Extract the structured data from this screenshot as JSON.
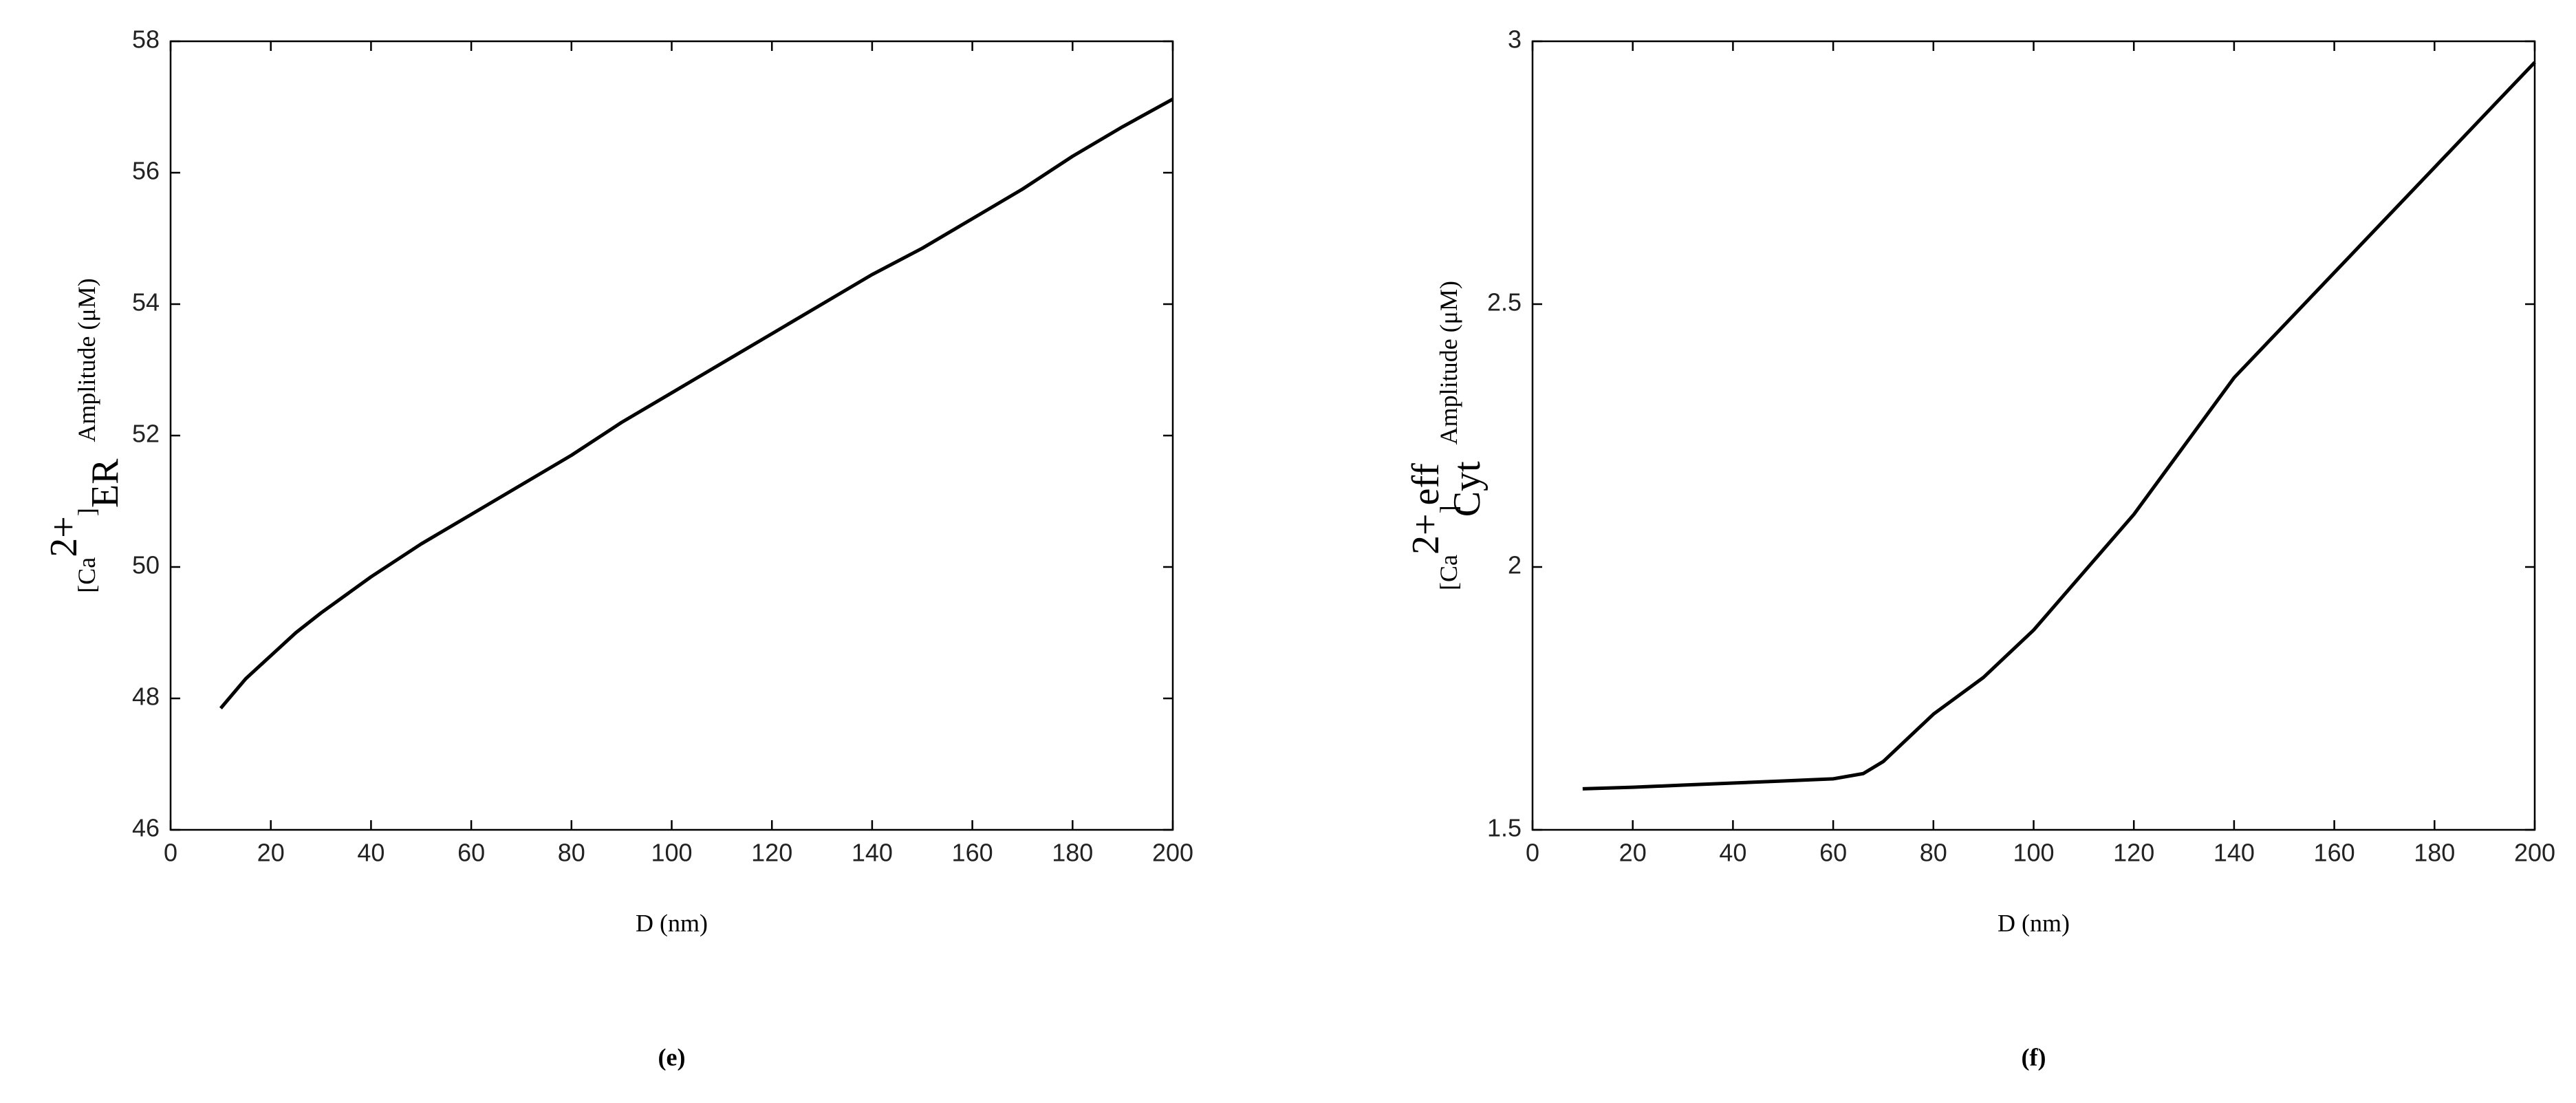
{
  "chart_data": [
    {
      "type": "line",
      "panel_label": "(e)",
      "xlabel": "D (nm)",
      "ylabel": {
        "base": "[Ca",
        "sup": "2+",
        "close": "]",
        "sub": "ER",
        "rest": "Amplitude (μM)"
      },
      "x": [
        10,
        15,
        20,
        25,
        30,
        40,
        50,
        60,
        70,
        80,
        90,
        100,
        110,
        120,
        130,
        140,
        150,
        160,
        170,
        180,
        190,
        200
      ],
      "series": [
        {
          "color": "#000000",
          "values": [
            47.85,
            48.3,
            48.65,
            49.0,
            49.3,
            49.85,
            50.35,
            50.8,
            51.25,
            51.7,
            52.2,
            52.65,
            53.1,
            53.55,
            54.0,
            54.45,
            54.85,
            55.3,
            55.75,
            56.25,
            56.7,
            57.12
          ]
        }
      ],
      "xlim": [
        0,
        200
      ],
      "xticks": [
        0,
        20,
        40,
        60,
        80,
        100,
        120,
        140,
        160,
        180,
        200
      ],
      "ylim": [
        46,
        58
      ],
      "yticks": [
        46,
        48,
        50,
        52,
        54,
        56,
        58
      ]
    },
    {
      "type": "line",
      "panel_label": "(f)",
      "xlabel": "D (nm)",
      "ylabel": {
        "base": "[Ca",
        "sup": "2+",
        "close": "]",
        "sup2": "eff",
        "sub": "Cyt",
        "rest": "Amplitude (μM)"
      },
      "x": [
        10,
        20,
        30,
        40,
        50,
        60,
        66,
        70,
        80,
        90,
        100,
        110,
        120,
        130,
        140,
        150,
        160,
        170,
        180,
        190,
        200
      ],
      "series": [
        {
          "color": "#000000",
          "values": [
            1.578,
            1.581,
            1.585,
            1.589,
            1.593,
            1.597,
            1.607,
            1.63,
            1.72,
            1.79,
            1.88,
            1.99,
            2.1,
            2.23,
            2.36,
            2.46,
            2.56,
            2.66,
            2.76,
            2.86,
            2.96
          ]
        }
      ],
      "xlim": [
        0,
        200
      ],
      "xticks": [
        0,
        20,
        40,
        60,
        80,
        100,
        120,
        140,
        160,
        180,
        200
      ],
      "ylim": [
        1.5,
        3
      ],
      "yticks": [
        1.5,
        2,
        2.5,
        3
      ]
    }
  ]
}
